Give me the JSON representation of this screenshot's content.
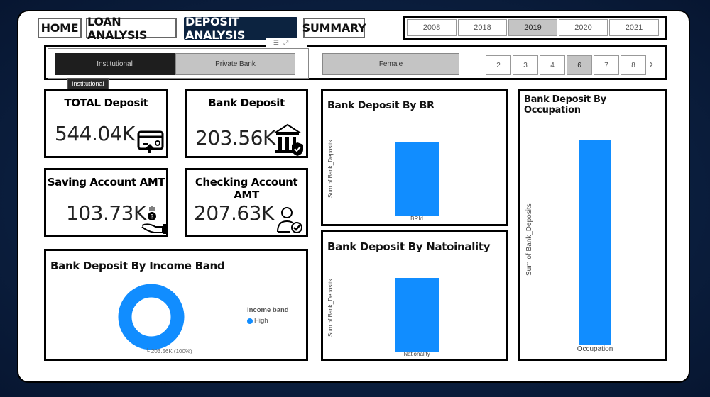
{
  "nav": {
    "tabs": [
      {
        "label": "HOME",
        "active": false
      },
      {
        "label": "LOAN ANALYSIS",
        "active": false
      },
      {
        "label": "DEPOSIT ANALYSIS",
        "active": true
      },
      {
        "label": "SUMMARY",
        "active": false
      }
    ]
  },
  "year_slicer": {
    "options": [
      "2008",
      "2018",
      "2019",
      "2020",
      "2021"
    ],
    "selected": "2019"
  },
  "slicers": {
    "client_type": {
      "options": [
        "Institutional",
        "Private Bank"
      ],
      "selected": "Institutional"
    },
    "gender": {
      "options": [
        "Female"
      ]
    },
    "numbers": {
      "options": [
        "2",
        "3",
        "4",
        "6",
        "7",
        "8"
      ],
      "selected": "6"
    },
    "tooltip": "Institutional",
    "visual_header_icons": [
      "filter-icon",
      "focus-mode-icon",
      "more-options-icon"
    ]
  },
  "kpis": [
    {
      "title": "TOTAL Deposit",
      "value": "544.04K",
      "icon": "card-icon"
    },
    {
      "title": "Bank Deposit",
      "value": "203.56K",
      "icon": "bank-icon"
    },
    {
      "title": "Saving Account  AMT",
      "value": "103.73K",
      "icon": "hand-coin-icon"
    },
    {
      "title": "Checking Account AMT",
      "value": "207.63K",
      "icon": "user-check-icon"
    }
  ],
  "colors": {
    "accent": "#118dff",
    "nav_active": "#0c2340",
    "selected_slicer": "#1e1e1e",
    "unselected_slicer": "#c4c4c4"
  },
  "chart_data": [
    {
      "type": "pie",
      "title": "Bank Deposit By Income Band",
      "legend_title": "income band",
      "legend_placement": "right",
      "categories": [
        "High"
      ],
      "values": [
        203.56
      ],
      "data_label": "203.56K (100%)",
      "donut": true,
      "colors": [
        "#118dff"
      ]
    },
    {
      "type": "bar",
      "title": "Bank Deposit By BR",
      "xlabel": "BRId",
      "ylabel": "Sum of Bank_Deposits",
      "categories": [
        ""
      ],
      "values": [
        203.56
      ],
      "grid": false
    },
    {
      "type": "bar",
      "title": "Bank Deposit By Natoinality",
      "xlabel": "Nationality",
      "ylabel": "Sum of Bank_Deposits",
      "categories": [
        ""
      ],
      "values": [
        203.56
      ],
      "grid": false
    },
    {
      "type": "bar",
      "title": "Bank Deposit By Occupation",
      "xlabel": "Occupation",
      "ylabel": "Sum of Bank_Deposits",
      "categories": [
        ""
      ],
      "values": [
        203.56
      ],
      "grid": false
    }
  ]
}
